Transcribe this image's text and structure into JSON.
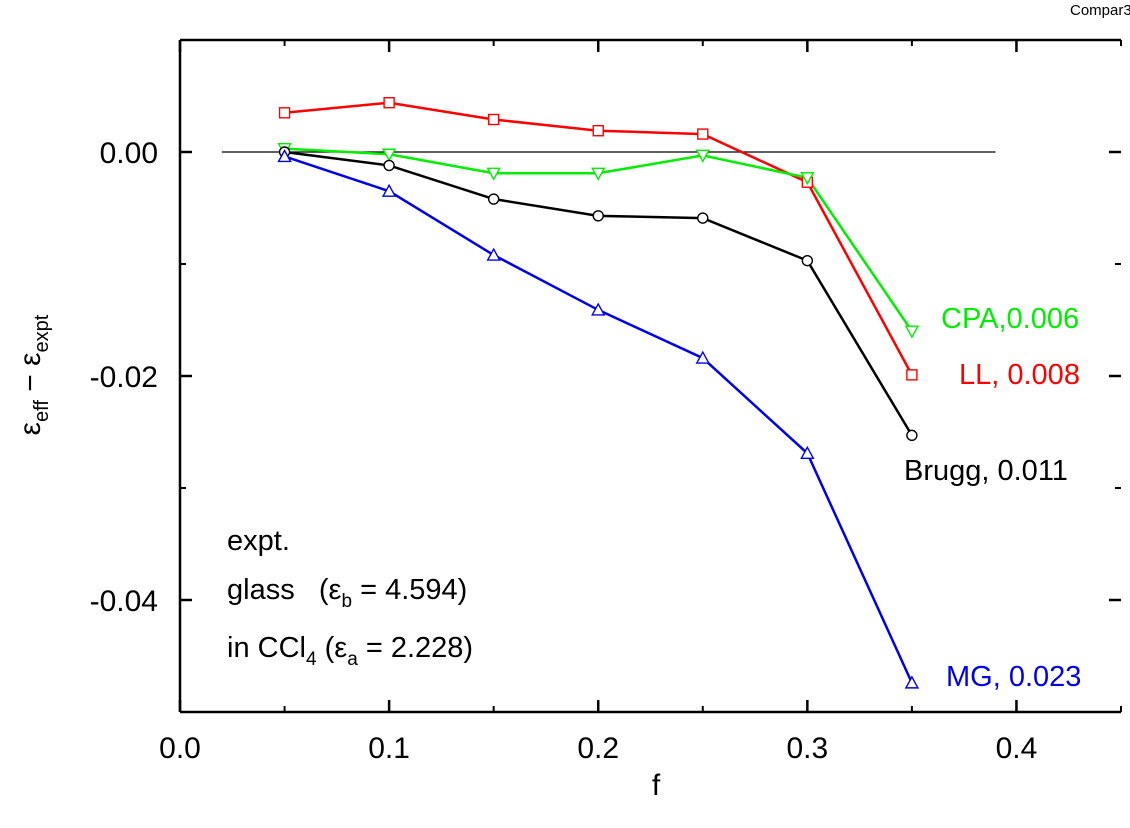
{
  "corner_tag": "Compar3",
  "chart_data": {
    "type": "line",
    "xlabel": "f",
    "ylabel": {
      "base1": "ε",
      "sub1": "eff",
      "minus": " − ",
      "base2": "ε",
      "sub2": "expt"
    },
    "xlim": [
      0.0,
      0.45
    ],
    "ylim": [
      -0.05,
      0.01
    ],
    "x_ticks": [
      0.0,
      0.1,
      0.2,
      0.3,
      0.4
    ],
    "x_tick_labels": [
      "0.0",
      "0.1",
      "0.2",
      "0.3",
      "0.4"
    ],
    "y_ticks": [
      0.0,
      -0.02,
      -0.04
    ],
    "y_tick_labels": [
      "0.00",
      "-0.02",
      "-0.04"
    ],
    "reference_line": {
      "y": 0.0,
      "x_range": [
        0.02,
        0.39
      ]
    },
    "x": [
      0.05,
      0.1,
      0.15,
      0.2,
      0.25,
      0.3,
      0.35
    ],
    "series": [
      {
        "name": "LL",
        "label": "LL, 0.008",
        "color": "#ff0000",
        "marker": "square",
        "values": [
          0.0035,
          0.0044,
          0.0029,
          0.0019,
          0.0016,
          -0.0027,
          -0.0199
        ]
      },
      {
        "name": "CPA",
        "label": "CPA,0.006",
        "color": "#00ee00",
        "marker": "triangle-down",
        "values": [
          0.0003,
          -0.0002,
          -0.0019,
          -0.0019,
          -0.0003,
          -0.0023,
          -0.016
        ]
      },
      {
        "name": "Brugg",
        "label": "Brugg, 0.011",
        "color": "#000000",
        "marker": "circle",
        "values": [
          0.0,
          -0.0012,
          -0.0042,
          -0.0057,
          -0.0059,
          -0.0097,
          -0.0253
        ]
      },
      {
        "name": "MG",
        "label": "MG, 0.023",
        "color": "#0000ee",
        "marker": "triangle-up",
        "values": [
          -0.0004,
          -0.0035,
          -0.0092,
          -0.0141,
          -0.0184,
          -0.0269,
          -0.0474
        ]
      }
    ],
    "annotations": {
      "line1": "expt.",
      "line2": {
        "pre": "glass   (",
        "eps": "ε",
        "sub": "b",
        "post": " = 4.594)"
      },
      "line3": {
        "pre": "in CCl",
        "sub4": "4",
        "mid": " (",
        "eps": "ε",
        "sub": "a",
        "post": " = 2.228)"
      }
    },
    "grid": false,
    "legend": "none"
  }
}
